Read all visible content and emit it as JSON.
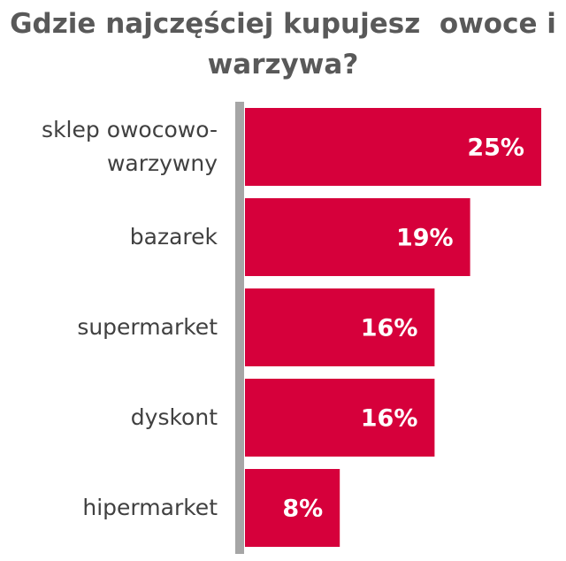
{
  "chart_data": {
    "type": "bar",
    "orientation": "horizontal",
    "title": "Gdzie najczęściej kupujesz  owoce i warzywa?",
    "categories": [
      "sklep owocowo-warzywny",
      "bazarek",
      "supermarket",
      "dyskont",
      "hipermarket"
    ],
    "values": [
      25,
      19,
      16,
      16,
      8
    ],
    "value_labels": [
      "25%",
      "19%",
      "16%",
      "16%",
      "8%"
    ],
    "color": "#d6003b"
  }
}
